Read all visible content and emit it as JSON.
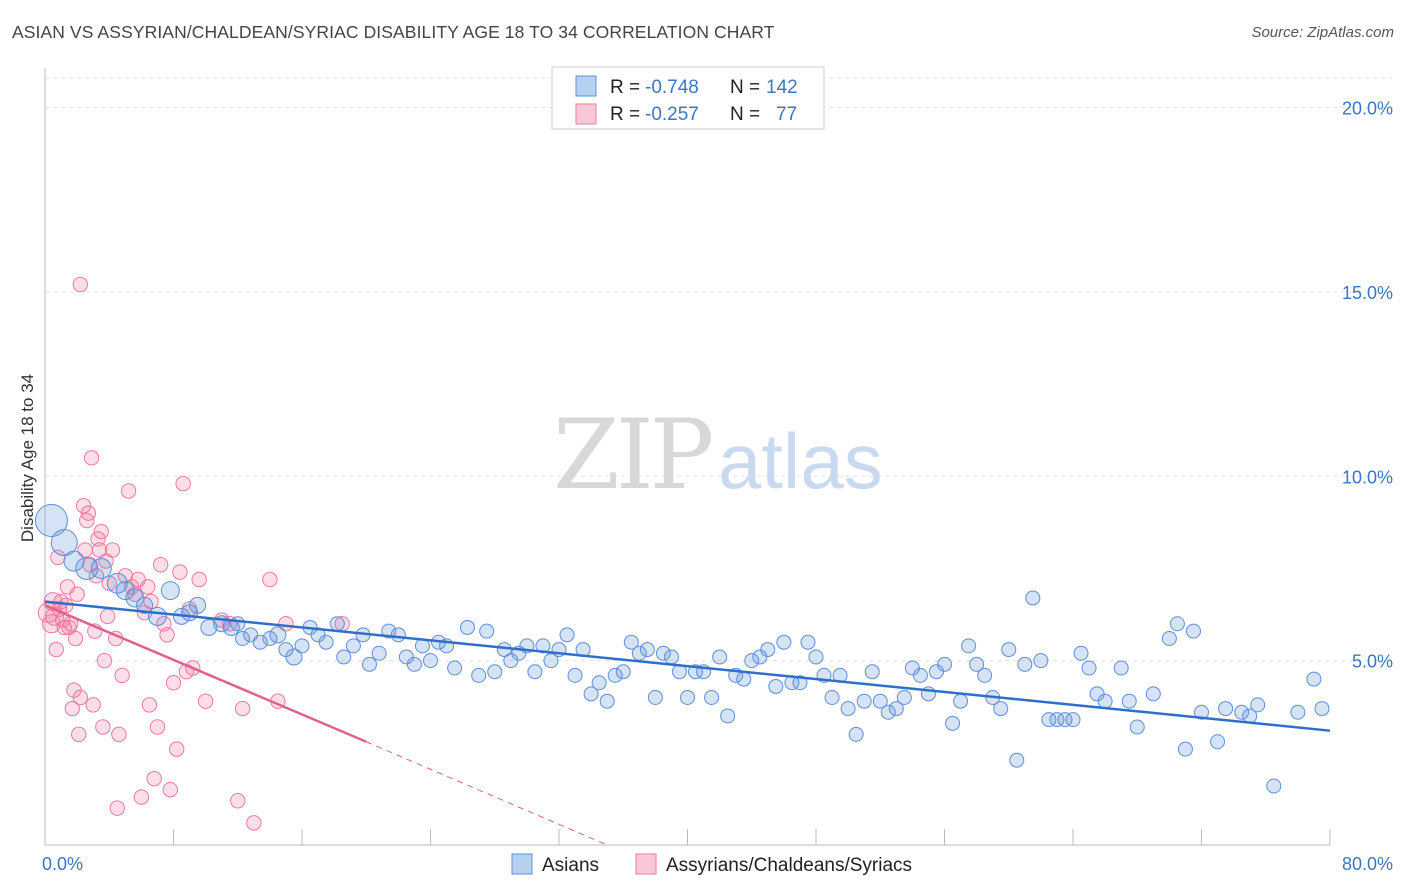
{
  "title": "ASIAN VS ASSYRIAN/CHALDEAN/SYRIAC DISABILITY AGE 18 TO 34 CORRELATION CHART",
  "source": "Source: ZipAtlas.com",
  "watermark": {
    "zip": "ZIP",
    "atlas": "atlas"
  },
  "legend": {
    "rows": [
      {
        "r_label": "R = ",
        "r_value": "-0.748",
        "n_label": "N = ",
        "n_value": "142"
      },
      {
        "r_label": "R = ",
        "r_value": "-0.257",
        "n_label": "N = ",
        "n_value": "77"
      }
    ]
  },
  "bottom_legend": [
    "Asians",
    "Assyrians/Chaldeans/Syriacs"
  ],
  "chart_data": {
    "type": "scatter",
    "title": "ASIAN VS ASSYRIAN/CHALDEAN/SYRIAC DISABILITY AGE 18 TO 34 CORRELATION CHART",
    "xlabel": "",
    "ylabel": "Disability Age 18 to 34",
    "xlim": [
      0,
      80
    ],
    "ylim": [
      0,
      20.8
    ],
    "x_tick_labels": [
      "0.0%",
      "80.0%"
    ],
    "y_ticks": [
      5,
      10,
      15,
      20
    ],
    "y_tick_labels": [
      "5.0%",
      "10.0%",
      "15.0%",
      "20.0%"
    ],
    "grid": true,
    "legend_position": "top-center",
    "colors": {
      "asians": "#5b8fdc",
      "assyrians": "#f07aa0",
      "asians_line": "#2f6fcc",
      "assyrians_line": "#e0608e"
    },
    "series": [
      {
        "name": "Asians",
        "R": -0.748,
        "N": 142,
        "trend": {
          "x0": 0,
          "y0": 6.6,
          "x1": 80,
          "y1": 3.1
        },
        "points": [
          [
            0.4,
            8.8,
            1.6
          ],
          [
            1.2,
            8.2,
            1.3
          ],
          [
            1.8,
            7.7,
            1
          ],
          [
            2.6,
            7.5,
            1.1
          ],
          [
            3.5,
            7.5,
            1
          ],
          [
            4.5,
            7.1,
            1
          ],
          [
            5.0,
            6.9,
            0.9
          ],
          [
            5.6,
            6.7,
            0.9
          ],
          [
            6.2,
            6.5,
            0.8
          ],
          [
            7.0,
            6.2,
            0.9
          ],
          [
            7.8,
            6.9,
            0.9
          ],
          [
            8.5,
            6.2,
            0.8
          ],
          [
            9.0,
            6.3,
            0.8
          ],
          [
            9.5,
            6.5,
            0.8
          ],
          [
            10.2,
            5.9,
            0.8
          ],
          [
            11.0,
            6.0,
            0.8
          ],
          [
            11.6,
            5.9,
            0.8
          ],
          [
            12.0,
            6.0,
            0.7
          ],
          [
            12.3,
            5.6,
            0.7
          ],
          [
            12.8,
            5.7,
            0.7
          ],
          [
            13.4,
            5.5,
            0.7
          ],
          [
            14.0,
            5.6,
            0.7
          ],
          [
            14.5,
            5.7,
            0.8
          ],
          [
            15.0,
            5.3,
            0.7
          ],
          [
            15.5,
            5.1,
            0.8
          ],
          [
            16.0,
            5.4,
            0.7
          ],
          [
            16.5,
            5.9,
            0.7
          ],
          [
            17.0,
            5.7,
            0.7
          ],
          [
            17.5,
            5.5,
            0.7
          ],
          [
            18.2,
            6.0,
            0.7
          ],
          [
            18.6,
            5.1,
            0.7
          ],
          [
            19.2,
            5.4,
            0.7
          ],
          [
            19.8,
            5.7,
            0.7
          ],
          [
            20.2,
            4.9,
            0.7
          ],
          [
            20.8,
            5.2,
            0.7
          ],
          [
            21.4,
            5.8,
            0.7
          ],
          [
            22.0,
            5.7,
            0.7
          ],
          [
            22.5,
            5.1,
            0.7
          ],
          [
            23.0,
            4.9,
            0.7
          ],
          [
            23.5,
            5.4,
            0.7
          ],
          [
            24.0,
            5.0,
            0.7
          ],
          [
            24.5,
            5.5,
            0.7
          ],
          [
            25.0,
            5.4,
            0.7
          ],
          [
            25.5,
            4.8,
            0.7
          ],
          [
            26.3,
            5.9,
            0.7
          ],
          [
            27.0,
            4.6,
            0.7
          ],
          [
            27.5,
            5.8,
            0.7
          ],
          [
            28.0,
            4.7,
            0.7
          ],
          [
            28.6,
            5.3,
            0.7
          ],
          [
            29.0,
            5.0,
            0.7
          ],
          [
            29.5,
            5.2,
            0.7
          ],
          [
            30.0,
            5.4,
            0.7
          ],
          [
            30.5,
            4.7,
            0.7
          ],
          [
            31.0,
            5.4,
            0.7
          ],
          [
            31.5,
            5.0,
            0.7
          ],
          [
            32.0,
            5.3,
            0.7
          ],
          [
            32.5,
            5.7,
            0.7
          ],
          [
            33.0,
            4.6,
            0.7
          ],
          [
            33.5,
            5.3,
            0.7
          ],
          [
            34.0,
            4.1,
            0.7
          ],
          [
            34.5,
            4.4,
            0.7
          ],
          [
            35.0,
            3.9,
            0.7
          ],
          [
            35.5,
            4.6,
            0.7
          ],
          [
            36.0,
            4.7,
            0.7
          ],
          [
            36.5,
            5.5,
            0.7
          ],
          [
            37.0,
            5.2,
            0.7
          ],
          [
            37.5,
            5.3,
            0.7
          ],
          [
            38.0,
            4.0,
            0.7
          ],
          [
            38.5,
            5.2,
            0.7
          ],
          [
            39.0,
            5.1,
            0.7
          ],
          [
            39.5,
            4.7,
            0.7
          ],
          [
            40.0,
            4.0,
            0.7
          ],
          [
            40.5,
            4.7,
            0.7
          ],
          [
            41.0,
            4.7,
            0.7
          ],
          [
            41.5,
            4.0,
            0.7
          ],
          [
            42.0,
            5.1,
            0.7
          ],
          [
            42.5,
            3.5,
            0.7
          ],
          [
            43.0,
            4.6,
            0.7
          ],
          [
            43.5,
            4.5,
            0.7
          ],
          [
            44.0,
            5.0,
            0.7
          ],
          [
            44.5,
            5.1,
            0.7
          ],
          [
            45.0,
            5.3,
            0.7
          ],
          [
            45.5,
            4.3,
            0.7
          ],
          [
            46.0,
            5.5,
            0.7
          ],
          [
            46.5,
            4.4,
            0.7
          ],
          [
            47.0,
            4.4,
            0.7
          ],
          [
            47.5,
            5.5,
            0.7
          ],
          [
            48.0,
            5.1,
            0.7
          ],
          [
            48.5,
            4.6,
            0.7
          ],
          [
            49.0,
            4.0,
            0.7
          ],
          [
            49.5,
            4.6,
            0.7
          ],
          [
            50.0,
            3.7,
            0.7
          ],
          [
            50.5,
            3.0,
            0.7
          ],
          [
            51.0,
            3.9,
            0.7
          ],
          [
            51.5,
            4.7,
            0.7
          ],
          [
            52.0,
            3.9,
            0.7
          ],
          [
            52.5,
            3.6,
            0.7
          ],
          [
            53.0,
            3.7,
            0.7
          ],
          [
            53.5,
            4.0,
            0.7
          ],
          [
            54.0,
            4.8,
            0.7
          ],
          [
            54.5,
            4.6,
            0.7
          ],
          [
            55.0,
            4.1,
            0.7
          ],
          [
            55.5,
            4.7,
            0.7
          ],
          [
            56.0,
            4.9,
            0.7
          ],
          [
            56.5,
            3.3,
            0.7
          ],
          [
            57.0,
            3.9,
            0.7
          ],
          [
            57.5,
            5.4,
            0.7
          ],
          [
            58.0,
            4.9,
            0.7
          ],
          [
            58.5,
            4.6,
            0.7
          ],
          [
            59.0,
            4.0,
            0.7
          ],
          [
            59.5,
            3.7,
            0.7
          ],
          [
            60.0,
            5.3,
            0.7
          ],
          [
            60.5,
            2.3,
            0.7
          ],
          [
            61.0,
            4.9,
            0.7
          ],
          [
            61.5,
            6.7,
            0.7
          ],
          [
            62.0,
            5.0,
            0.7
          ],
          [
            62.5,
            3.4,
            0.7
          ],
          [
            63.0,
            3.4,
            0.7
          ],
          [
            63.5,
            3.4,
            0.7
          ],
          [
            64.0,
            3.4,
            0.7
          ],
          [
            64.5,
            5.2,
            0.7
          ],
          [
            65.0,
            4.8,
            0.7
          ],
          [
            65.5,
            4.1,
            0.7
          ],
          [
            66.0,
            3.9,
            0.7
          ],
          [
            67.0,
            4.8,
            0.7
          ],
          [
            67.5,
            3.9,
            0.7
          ],
          [
            68.0,
            3.2,
            0.7
          ],
          [
            69.0,
            4.1,
            0.7
          ],
          [
            70.0,
            5.6,
            0.7
          ],
          [
            70.5,
            6.0,
            0.7
          ],
          [
            71.0,
            2.6,
            0.7
          ],
          [
            71.5,
            5.8,
            0.7
          ],
          [
            72.0,
            3.6,
            0.7
          ],
          [
            73.0,
            2.8,
            0.7
          ],
          [
            73.5,
            3.7,
            0.7
          ],
          [
            74.5,
            3.6,
            0.7
          ],
          [
            75.0,
            3.5,
            0.7
          ],
          [
            75.5,
            3.8,
            0.7
          ],
          [
            78.0,
            3.6,
            0.7
          ],
          [
            79.0,
            4.5,
            0.7
          ],
          [
            76.5,
            1.6,
            0.7
          ],
          [
            79.5,
            3.7,
            0.7
          ]
        ]
      },
      {
        "name": "Assyrians/Chaldeans/Syriacs",
        "R": -0.257,
        "N": 77,
        "trend": {
          "x0": 0,
          "y0": 6.5,
          "x1": 20,
          "y1": 2.8,
          "dashed_x1": 35,
          "dashed_y1": 0
        },
        "points": [
          [
            0.2,
            6.3,
            1.1
          ],
          [
            0.4,
            6.0,
            1
          ],
          [
            0.5,
            6.6,
            1
          ],
          [
            0.6,
            6.2,
            1
          ],
          [
            0.7,
            5.3,
            0.8
          ],
          [
            0.8,
            7.8,
            0.8
          ],
          [
            0.9,
            6.4,
            0.8
          ],
          [
            1.0,
            6.6,
            0.8
          ],
          [
            1.1,
            6.1,
            0.8
          ],
          [
            1.2,
            5.9,
            0.8
          ],
          [
            1.3,
            6.5,
            0.8
          ],
          [
            1.4,
            7.0,
            0.8
          ],
          [
            1.5,
            5.9,
            0.8
          ],
          [
            1.6,
            6.0,
            0.8
          ],
          [
            1.7,
            3.7,
            0.8
          ],
          [
            1.8,
            4.2,
            0.8
          ],
          [
            1.9,
            5.6,
            0.8
          ],
          [
            2.0,
            6.8,
            0.8
          ],
          [
            2.1,
            3.0,
            0.8
          ],
          [
            2.2,
            4.0,
            0.8
          ],
          [
            2.4,
            9.2,
            0.8
          ],
          [
            2.5,
            8.0,
            0.8
          ],
          [
            2.6,
            8.8,
            0.8
          ],
          [
            2.7,
            9.0,
            0.8
          ],
          [
            2.8,
            7.6,
            0.8
          ],
          [
            2.9,
            10.5,
            0.8
          ],
          [
            3.0,
            3.8,
            0.8
          ],
          [
            3.1,
            5.8,
            0.8
          ],
          [
            3.2,
            7.3,
            0.8
          ],
          [
            3.3,
            8.3,
            0.8
          ],
          [
            3.4,
            8.0,
            0.8
          ],
          [
            3.5,
            8.5,
            0.8
          ],
          [
            3.6,
            3.2,
            0.8
          ],
          [
            3.7,
            5.0,
            0.8
          ],
          [
            3.8,
            7.7,
            0.8
          ],
          [
            3.9,
            6.2,
            0.8
          ],
          [
            4.0,
            7.1,
            0.8
          ],
          [
            4.2,
            8.0,
            0.8
          ],
          [
            4.4,
            5.6,
            0.8
          ],
          [
            4.6,
            3.0,
            0.8
          ],
          [
            4.8,
            4.6,
            0.8
          ],
          [
            5.0,
            7.3,
            0.8
          ],
          [
            5.2,
            9.6,
            0.8
          ],
          [
            5.4,
            7.0,
            0.8
          ],
          [
            5.6,
            6.8,
            0.8
          ],
          [
            5.8,
            7.2,
            0.8
          ],
          [
            6.0,
            1.3,
            0.8
          ],
          [
            6.2,
            6.3,
            0.8
          ],
          [
            6.4,
            7.0,
            0.8
          ],
          [
            6.6,
            6.6,
            0.8
          ],
          [
            6.8,
            1.8,
            0.8
          ],
          [
            7.0,
            3.2,
            0.8
          ],
          [
            7.2,
            7.6,
            0.8
          ],
          [
            7.4,
            6.0,
            0.8
          ],
          [
            7.6,
            5.7,
            0.8
          ],
          [
            7.8,
            1.5,
            0.8
          ],
          [
            8.0,
            4.4,
            0.8
          ],
          [
            8.2,
            2.6,
            0.8
          ],
          [
            8.4,
            7.4,
            0.8
          ],
          [
            8.6,
            9.8,
            0.8
          ],
          [
            8.8,
            4.7,
            0.8
          ],
          [
            9.0,
            6.4,
            0.8
          ],
          [
            9.2,
            4.8,
            0.8
          ],
          [
            9.6,
            7.2,
            0.8
          ],
          [
            10.0,
            3.9,
            0.8
          ],
          [
            11.0,
            6.1,
            0.8
          ],
          [
            11.5,
            6.0,
            0.8
          ],
          [
            12.0,
            1.2,
            0.8
          ],
          [
            12.3,
            3.7,
            0.8
          ],
          [
            13.0,
            0.6,
            0.8
          ],
          [
            14.0,
            7.2,
            0.8
          ],
          [
            14.5,
            3.9,
            0.8
          ],
          [
            15.0,
            6.0,
            0.8
          ],
          [
            18.5,
            6.0,
            0.8
          ],
          [
            2.2,
            15.2,
            0.8
          ],
          [
            6.5,
            3.8,
            0.8
          ],
          [
            4.5,
            1.0,
            0.8
          ]
        ]
      }
    ]
  }
}
